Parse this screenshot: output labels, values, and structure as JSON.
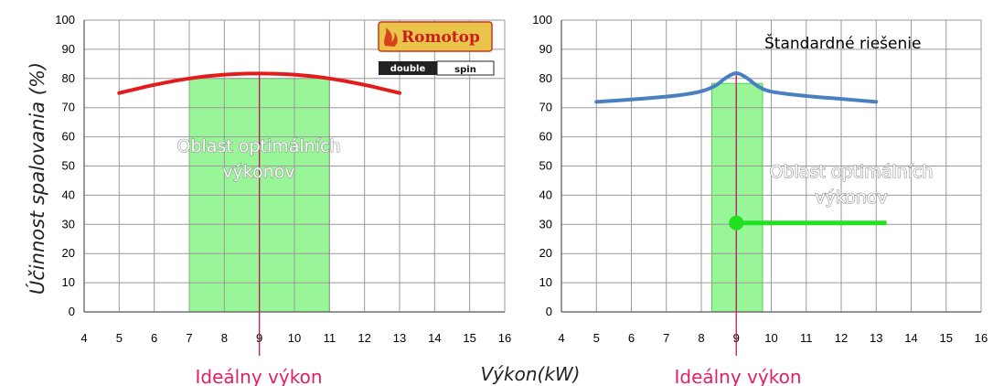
{
  "shared": {
    "ylabel": "Účinnost spalovania  (%)",
    "xlabel": "Výkon(kW)",
    "ideal_label": "Ideálny výkon",
    "band_label_line1": "Oblast optimálních",
    "band_label_line2": "výkonov"
  },
  "logo": {
    "brand": "Romotop",
    "sub_left": "double",
    "sub_right": "spin"
  },
  "colors": {
    "left_curve": "#e31b1b",
    "right_curve": "#4a7fc1",
    "band": "#98f598",
    "band_edge": "#4fd24f",
    "ideal_line": "#c2185b",
    "marker": "#22e022",
    "grid": "#9a9a9a"
  },
  "chart_data": [
    {
      "type": "line",
      "title": "",
      "xlabel": "Výkon(kW)",
      "ylabel": "Účinnost spalovania  (%)",
      "xlim": [
        4,
        16
      ],
      "ylim": [
        0,
        100
      ],
      "x_ticks": [
        4,
        5,
        6,
        7,
        8,
        9,
        10,
        11,
        12,
        13,
        14,
        15,
        16
      ],
      "y_ticks": [
        0,
        10,
        20,
        30,
        40,
        50,
        60,
        70,
        80,
        90,
        100
      ],
      "grid": true,
      "series": [
        {
          "color": "#e31b1b",
          "x": [
            5,
            6,
            7,
            8,
            9,
            10,
            11,
            12,
            13
          ],
          "y": [
            75,
            77.8,
            80,
            81.3,
            81.7,
            81.3,
            80,
            77.8,
            75
          ]
        }
      ],
      "optimal_range": [
        7,
        11
      ],
      "ideal_x": 9
    },
    {
      "type": "line",
      "title": "",
      "annotation": "Štandardné riešenie",
      "xlabel": "Výkon(kW)",
      "ylabel": "",
      "xlim": [
        4,
        16
      ],
      "ylim": [
        0,
        100
      ],
      "x_ticks": [
        4,
        5,
        6,
        7,
        8,
        9,
        10,
        11,
        12,
        13,
        14,
        15,
        16
      ],
      "y_ticks": [
        0,
        10,
        20,
        30,
        40,
        50,
        60,
        70,
        80,
        90,
        100
      ],
      "grid": true,
      "series": [
        {
          "color": "#4a7fc1",
          "x": [
            5,
            6,
            7,
            7.5,
            8,
            8.4,
            8.7,
            9,
            9.3,
            9.6,
            10,
            11,
            12,
            13
          ],
          "y": [
            72,
            72.8,
            73.8,
            74.5,
            75.6,
            77.5,
            80.2,
            81.8,
            80.2,
            77.5,
            75.5,
            74,
            73,
            72
          ]
        }
      ],
      "optimal_range": [
        8.3,
        9.75
      ],
      "ideal_x": 9,
      "marker": {
        "x": 9,
        "y": 30.5,
        "x_end": 13.3
      }
    }
  ]
}
